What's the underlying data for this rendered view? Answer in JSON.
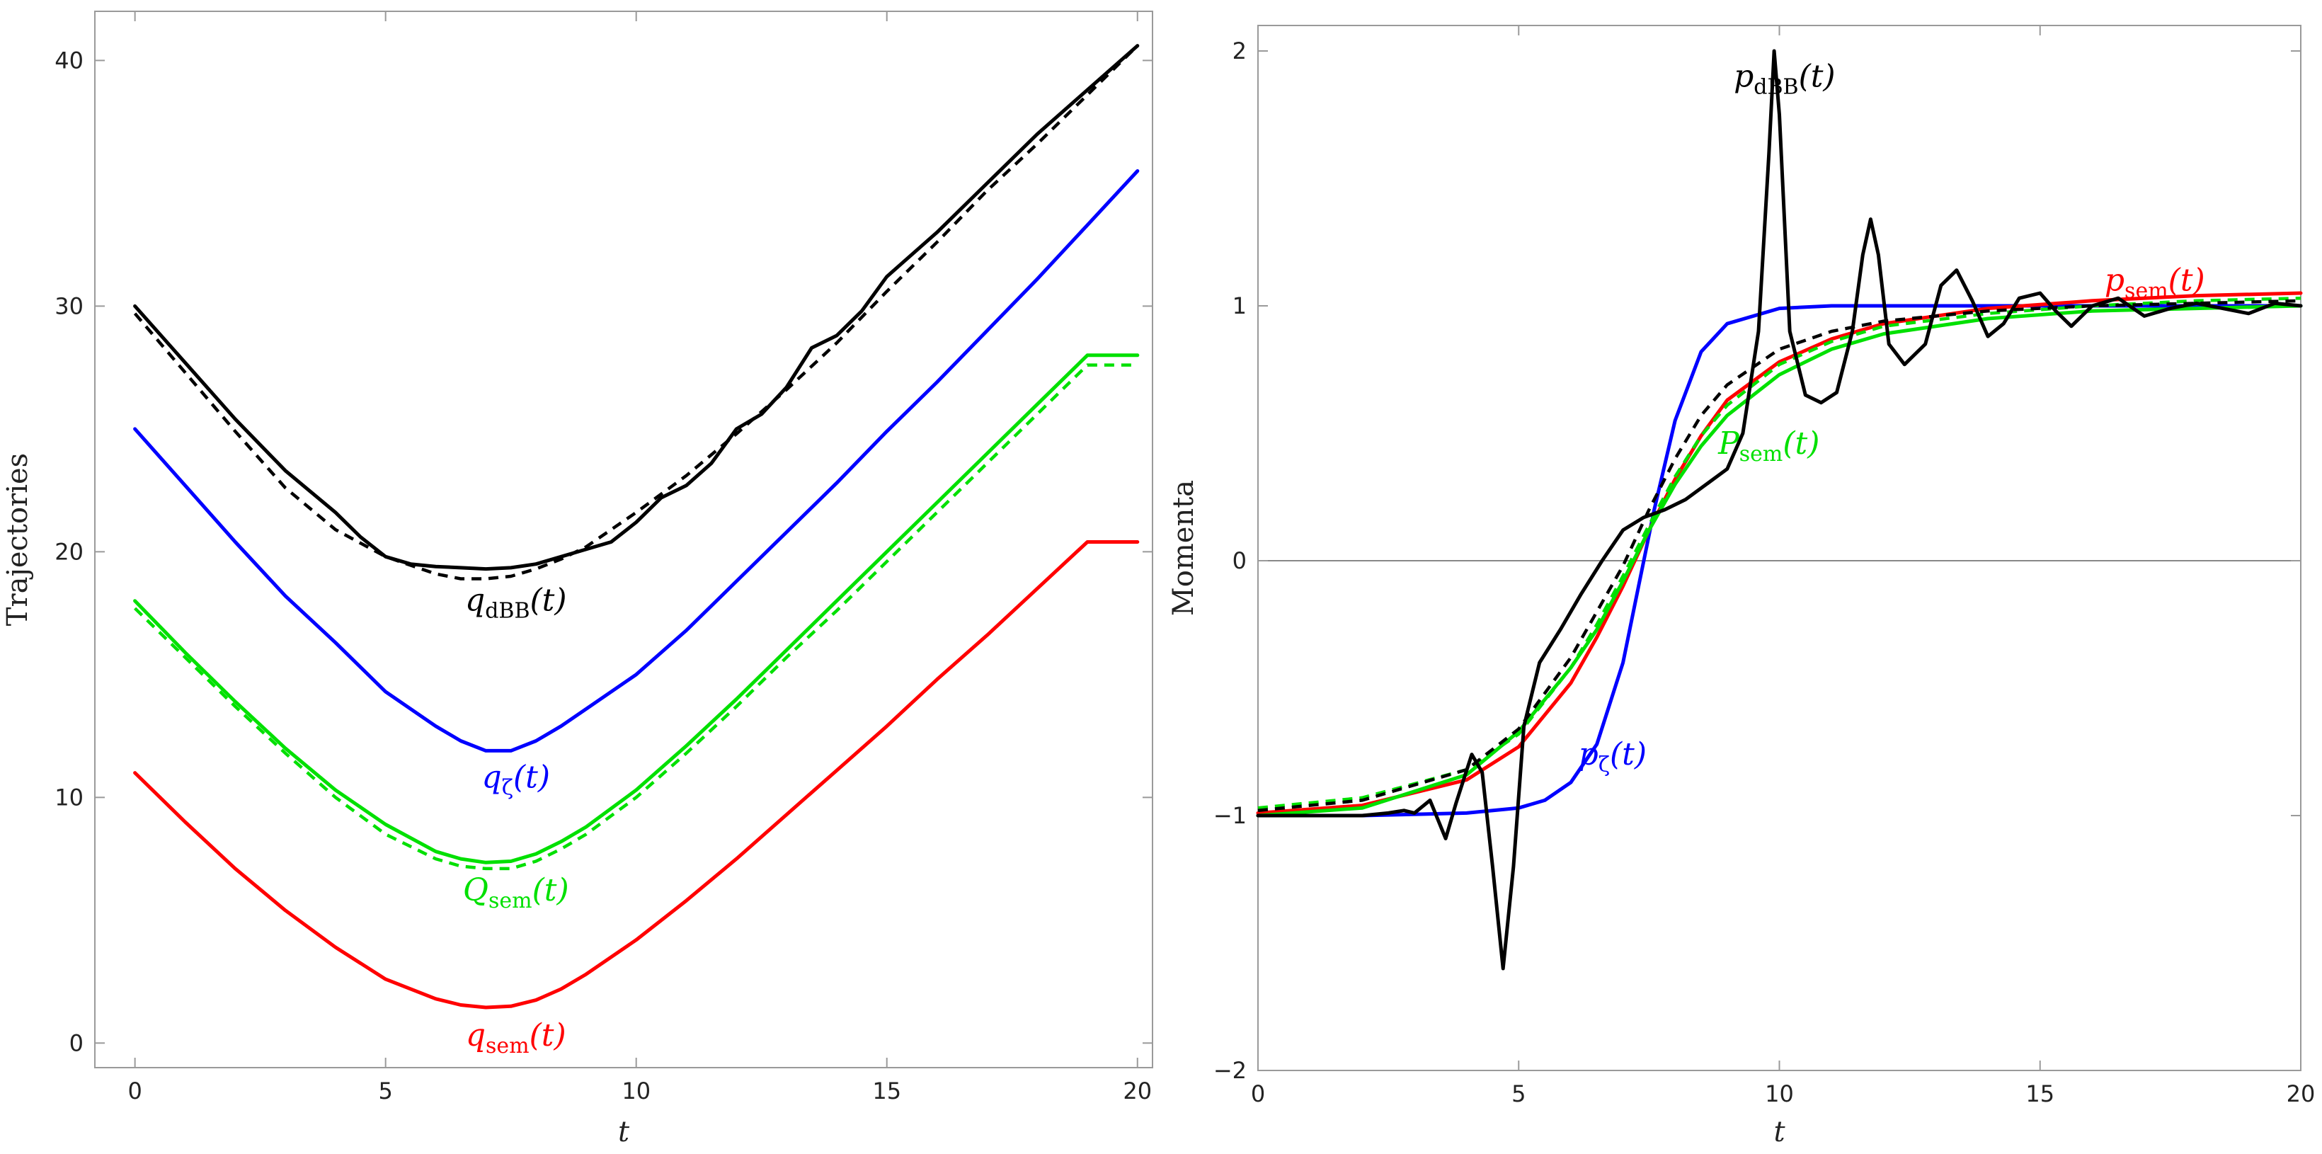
{
  "chart_data": [
    {
      "type": "line",
      "xlabel": "t",
      "ylabel": "Trajectories",
      "xlim": [
        -0.8,
        20.3
      ],
      "ylim": [
        -1,
        42
      ],
      "xticks": [
        0,
        5,
        10,
        15,
        20
      ],
      "yticks": [
        0,
        10,
        20,
        30,
        40
      ],
      "grid": false,
      "series": [
        {
          "key": "qdbb",
          "color": "#000000",
          "dashed": false,
          "x": [
            0,
            1,
            2,
            3,
            4,
            4.5,
            5,
            5.5,
            6,
            6.5,
            7,
            7.5,
            8,
            8.5,
            9,
            9.5,
            10,
            10.5,
            11,
            11.5,
            12,
            12.5,
            13,
            13.5,
            14,
            14.5,
            15,
            16,
            17,
            18,
            19,
            20
          ],
          "y": [
            30,
            27.7,
            25.4,
            23.3,
            21.6,
            20.6,
            19.8,
            19.5,
            19.4,
            19.35,
            19.3,
            19.35,
            19.5,
            19.8,
            20.1,
            20.4,
            21.2,
            22.2,
            22.7,
            23.6,
            25.0,
            25.6,
            26.7,
            28.3,
            28.8,
            29.8,
            31.2,
            33.0,
            35.0,
            37.0,
            38.8,
            40.6
          ]
        },
        {
          "key": "qdbb_dash",
          "color": "#000000",
          "dashed": true,
          "x": [
            0,
            1,
            2,
            3,
            4,
            5,
            6,
            6.5,
            7,
            7.5,
            8,
            8.5,
            9,
            10,
            11,
            12,
            13,
            14,
            15,
            16,
            17,
            18,
            19,
            20
          ],
          "y": [
            29.7,
            27.3,
            24.9,
            22.6,
            20.9,
            19.8,
            19.1,
            18.9,
            18.9,
            19.0,
            19.3,
            19.7,
            20.2,
            21.6,
            23.1,
            24.8,
            26.6,
            28.5,
            30.6,
            32.6,
            34.7,
            36.6,
            38.6,
            40.6
          ]
        },
        {
          "key": "qzeta",
          "color": "#0000ff",
          "dashed": false,
          "x": [
            0,
            1,
            2,
            3,
            4,
            5,
            6,
            6.5,
            7,
            7.5,
            8,
            8.5,
            9,
            10,
            11,
            12,
            13,
            14,
            15,
            16,
            17,
            18,
            19,
            20
          ],
          "y": [
            25.0,
            22.7,
            20.4,
            18.2,
            16.3,
            14.3,
            12.9,
            12.3,
            11.9,
            11.9,
            12.3,
            12.9,
            13.6,
            15.0,
            16.8,
            18.8,
            20.8,
            22.8,
            24.9,
            26.9,
            29.0,
            31.1,
            33.3,
            35.5
          ]
        },
        {
          "key": "Qsem",
          "color": "#00e000",
          "dashed": false,
          "x": [
            0,
            1,
            2,
            3,
            4,
            5,
            6,
            6.5,
            7,
            7.5,
            8,
            8.5,
            9,
            10,
            11,
            12,
            13,
            14,
            15,
            16,
            17,
            18,
            19,
            20
          ],
          "y": [
            18.0,
            15.9,
            13.9,
            12.0,
            10.3,
            8.9,
            7.8,
            7.5,
            7.35,
            7.4,
            7.7,
            8.2,
            8.8,
            10.3,
            12.1,
            14.0,
            16.0,
            18.0,
            20.0,
            22.0,
            24.0,
            26.0,
            28.0,
            28.0
          ]
        },
        {
          "key": "Qsem_dash",
          "color": "#00e000",
          "dashed": true,
          "x": [
            0,
            1,
            2,
            3,
            4,
            5,
            6,
            6.5,
            7,
            7.5,
            8,
            8.5,
            9,
            10,
            11,
            12,
            13,
            14,
            15,
            16,
            17,
            18,
            19,
            20
          ],
          "y": [
            17.7,
            15.7,
            13.7,
            11.8,
            10.0,
            8.5,
            7.5,
            7.2,
            7.1,
            7.1,
            7.4,
            7.9,
            8.5,
            10.0,
            11.8,
            13.7,
            15.7,
            17.6,
            19.6,
            21.6,
            23.6,
            25.6,
            27.6,
            27.6
          ]
        },
        {
          "key": "qsem",
          "color": "#ff0000",
          "dashed": false,
          "x": [
            0,
            1,
            2,
            3,
            4,
            5,
            6,
            6.5,
            7,
            7.5,
            8,
            8.5,
            9,
            10,
            11,
            12,
            13,
            14,
            15,
            16,
            17,
            18,
            19,
            20
          ],
          "y": [
            11.0,
            9.0,
            7.1,
            5.4,
            3.9,
            2.6,
            1.8,
            1.55,
            1.45,
            1.5,
            1.75,
            2.2,
            2.8,
            4.2,
            5.8,
            7.5,
            9.3,
            11.1,
            12.9,
            14.8,
            16.6,
            18.5,
            20.4,
            20.4
          ]
        }
      ],
      "labels": [
        {
          "key": "qdbb",
          "color": "#000000",
          "symbol": "q",
          "sub": "dBB",
          "arg": "(t)",
          "x": 7.6,
          "y": 17.6
        },
        {
          "key": "qzeta",
          "color": "#0000ff",
          "symbol": "q",
          "sub": "ζ",
          "arg": "(t)",
          "x": 7.6,
          "y": 10.4
        },
        {
          "key": "Qsem",
          "color": "#00e000",
          "symbol": "Q",
          "sub": "sem",
          "arg": "(t)",
          "x": 7.6,
          "y": 5.8
        },
        {
          "key": "qsem",
          "color": "#ff0000",
          "symbol": "q",
          "sub": "sem",
          "arg": "(t)",
          "x": 7.6,
          "y": -0.1
        }
      ]
    },
    {
      "type": "line",
      "xlabel": "t",
      "ylabel": "Momenta",
      "xlim": [
        0,
        20
      ],
      "ylim": [
        -2,
        2.1
      ],
      "xticks": [
        0,
        5,
        10,
        15,
        20
      ],
      "yticks": [
        -2,
        -1,
        0,
        1,
        2
      ],
      "grid": false,
      "zero_line": true,
      "series": [
        {
          "key": "pzeta",
          "color": "#0000ff",
          "dashed": false,
          "x": [
            0,
            2,
            4,
            5,
            5.5,
            6,
            6.5,
            7,
            7.3,
            7.6,
            8,
            8.5,
            9,
            10,
            11,
            12,
            14,
            16,
            18,
            20
          ],
          "y": [
            -1.0,
            -1.0,
            -0.99,
            -0.97,
            -0.94,
            -0.87,
            -0.72,
            -0.4,
            -0.1,
            0.2,
            0.55,
            0.82,
            0.93,
            0.99,
            1.0,
            1.0,
            1.0,
            1.0,
            1.0,
            1.0
          ]
        },
        {
          "key": "psem",
          "color": "#ff0000",
          "dashed": false,
          "x": [
            0,
            2,
            4,
            5,
            6,
            6.5,
            7,
            7.5,
            8,
            8.5,
            9,
            10,
            11,
            12,
            14,
            16,
            18,
            20
          ],
          "y": [
            -0.99,
            -0.96,
            -0.86,
            -0.73,
            -0.48,
            -0.3,
            -0.1,
            0.12,
            0.32,
            0.49,
            0.63,
            0.78,
            0.87,
            0.93,
            0.99,
            1.02,
            1.04,
            1.05
          ]
        },
        {
          "key": "Psem",
          "color": "#00e000",
          "dashed": false,
          "x": [
            0,
            2,
            4,
            5,
            6,
            6.5,
            7,
            7.5,
            8,
            8.5,
            9,
            10,
            11,
            12,
            14,
            16,
            18,
            20
          ],
          "y": [
            -1.0,
            -0.97,
            -0.84,
            -0.67,
            -0.42,
            -0.27,
            -0.08,
            0.12,
            0.3,
            0.45,
            0.57,
            0.73,
            0.83,
            0.89,
            0.95,
            0.98,
            0.99,
            1.0
          ]
        },
        {
          "key": "Psem_dash",
          "color": "#00e000",
          "dashed": true,
          "x": [
            0,
            2,
            4,
            5,
            6,
            6.5,
            7,
            7.5,
            8,
            8.5,
            9,
            10,
            11,
            12,
            14,
            16,
            18,
            20
          ],
          "y": [
            -0.97,
            -0.93,
            -0.82,
            -0.68,
            -0.42,
            -0.25,
            -0.06,
            0.14,
            0.33,
            0.49,
            0.61,
            0.77,
            0.86,
            0.92,
            0.97,
            1.0,
            1.02,
            1.03
          ]
        },
        {
          "key": "pdbb_dash",
          "color": "#000000",
          "dashed": true,
          "x": [
            0,
            2,
            4,
            5,
            6,
            6.5,
            7,
            7.5,
            8,
            8.5,
            9,
            10,
            11,
            12,
            14,
            16,
            18,
            20
          ],
          "y": [
            -0.98,
            -0.94,
            -0.82,
            -0.66,
            -0.38,
            -0.2,
            -0.02,
            0.2,
            0.4,
            0.57,
            0.69,
            0.83,
            0.9,
            0.94,
            0.98,
            1.0,
            1.01,
            1.02
          ]
        },
        {
          "key": "pdbb",
          "color": "#000000",
          "dashed": false,
          "x": [
            0,
            1,
            2,
            2.5,
            2.8,
            3.0,
            3.3,
            3.6,
            3.8,
            4.1,
            4.3,
            4.5,
            4.7,
            4.9,
            5.1,
            5.4,
            5.8,
            6.2,
            6.6,
            7.0,
            7.4,
            7.8,
            8.2,
            8.6,
            9.0,
            9.3,
            9.6,
            9.8,
            9.9,
            10.0,
            10.2,
            10.5,
            10.8,
            11.1,
            11.4,
            11.6,
            11.75,
            11.9,
            12.1,
            12.4,
            12.8,
            13.1,
            13.4,
            13.7,
            14.0,
            14.3,
            14.6,
            15.0,
            15.3,
            15.6,
            16.0,
            16.5,
            17.0,
            17.5,
            18.0,
            18.5,
            19.0,
            19.5,
            20.0
          ],
          "y": [
            -1.0,
            -1.0,
            -1.0,
            -0.99,
            -0.98,
            -0.99,
            -0.94,
            -1.09,
            -0.95,
            -0.76,
            -0.83,
            -1.2,
            -1.6,
            -1.2,
            -0.65,
            -0.4,
            -0.27,
            -0.13,
            0.0,
            0.12,
            0.17,
            0.2,
            0.24,
            0.3,
            0.36,
            0.5,
            0.9,
            1.6,
            2.0,
            1.75,
            0.9,
            0.65,
            0.62,
            0.66,
            0.9,
            1.2,
            1.34,
            1.2,
            0.85,
            0.77,
            0.85,
            1.08,
            1.14,
            1.02,
            0.88,
            0.93,
            1.03,
            1.05,
            0.98,
            0.92,
            1.0,
            1.03,
            0.96,
            0.99,
            1.01,
            0.99,
            0.97,
            1.01,
            1.0
          ]
        }
      ],
      "labels": [
        {
          "key": "pdbb",
          "color": "#000000",
          "symbol": "p",
          "sub": "dBB",
          "arg": "(t)",
          "x": 10.1,
          "y": 1.86
        },
        {
          "key": "psem",
          "color": "#ff0000",
          "symbol": "p",
          "sub": "sem",
          "arg": "(t)",
          "x": 17.2,
          "y": 1.06
        },
        {
          "key": "Psem",
          "color": "#00e000",
          "symbol": "P",
          "sub": "sem",
          "arg": "(t)",
          "x": 9.8,
          "y": 0.42
        },
        {
          "key": "pzeta",
          "color": "#0000ff",
          "symbol": "p",
          "sub": "ζ",
          "arg": "(t)",
          "x": 6.8,
          "y": -0.8
        }
      ]
    }
  ]
}
